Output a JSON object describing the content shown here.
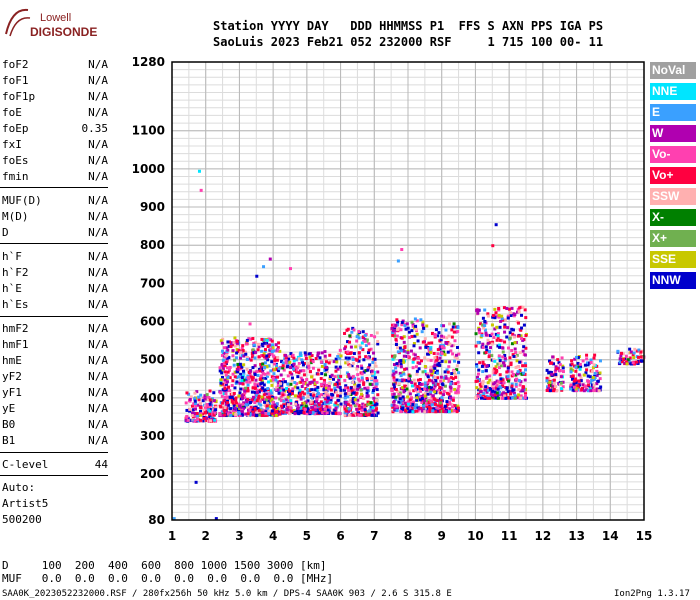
{
  "logo": {
    "line1": "Lowell",
    "line2": "DIGISONDE"
  },
  "header": {
    "row1": "Station YYYY DAY   DDD HHMMSS P1  FFS S AXN PPS IGA PS",
    "row2": "SaoLuis 2023 Feb21 052 232000 RSF     1 715 100 00- 11"
  },
  "params": [
    {
      "name": "foF2",
      "value": "N/A"
    },
    {
      "name": "foF1",
      "value": "N/A"
    },
    {
      "name": "foF1p",
      "value": "N/A"
    },
    {
      "name": "foE",
      "value": "N/A"
    },
    {
      "name": "foEp",
      "value": "0.35"
    },
    {
      "name": "fxI",
      "value": "N/A"
    },
    {
      "name": "foEs",
      "value": "N/A"
    },
    {
      "name": "fmin",
      "value": "N/A"
    },
    {
      "name": "MUF(D)",
      "value": "N/A"
    },
    {
      "name": "M(D)",
      "value": "N/A"
    },
    {
      "name": "D",
      "value": "N/A"
    },
    {
      "name": "h`F",
      "value": "N/A"
    },
    {
      "name": "h`F2",
      "value": "N/A"
    },
    {
      "name": "h`E",
      "value": "N/A"
    },
    {
      "name": "h`Es",
      "value": "N/A"
    },
    {
      "name": "hmF2",
      "value": "N/A"
    },
    {
      "name": "hmF1",
      "value": "N/A"
    },
    {
      "name": "hmE",
      "value": "N/A"
    },
    {
      "name": "yF2",
      "value": "N/A"
    },
    {
      "name": "yF1",
      "value": "N/A"
    },
    {
      "name": "yE",
      "value": "N/A"
    },
    {
      "name": "B0",
      "value": "N/A"
    },
    {
      "name": "B1",
      "value": "N/A"
    },
    {
      "name": "C-level",
      "value": "44"
    }
  ],
  "auto": {
    "line1": "Auto:",
    "line2": "Artist5",
    "line3": "500200"
  },
  "footer": {
    "d_row": "D     100  200  400  600  800 1000 1500 3000 [km]",
    "muf_row": "MUF   0.0  0.0  0.0  0.0  0.0  0.0  0.0  0.0 [MHz]",
    "file_info": "SAA0K_2023052232000.RSF / 280fx256h 50 kHz 5.0 km / DPS-4 SAA0K 903 / 2.6 S 315.8 E",
    "version": "Ion2Png 1.3.17"
  },
  "legend": [
    {
      "label": "NoVal",
      "color": "#a0a0a0"
    },
    {
      "label": "NNE",
      "color": "#00e5ff"
    },
    {
      "label": "E",
      "color": "#3aa0ff"
    },
    {
      "label": "W",
      "color": "#b000b0"
    },
    {
      "label": "Vo-",
      "color": "#ff40b0"
    },
    {
      "label": "Vo+",
      "color": "#ff0040"
    },
    {
      "label": "SSW",
      "color": "#ffb0b0"
    },
    {
      "label": "X-",
      "color": "#008000"
    },
    {
      "label": "X+",
      "color": "#70b050"
    },
    {
      "label": "SSE",
      "color": "#c8c800"
    },
    {
      "label": "NNW",
      "color": "#0000cc"
    }
  ],
  "chart_data": {
    "type": "scatter",
    "xlim": [
      1,
      15
    ],
    "ylim": [
      80,
      1280
    ],
    "xticks": [
      1,
      2,
      3,
      4,
      5,
      6,
      7,
      8,
      9,
      10,
      11,
      12,
      13,
      14,
      15
    ],
    "yticks": [
      80,
      200,
      300,
      400,
      500,
      600,
      700,
      800,
      900,
      1000,
      1100,
      1280
    ],
    "grid": true,
    "legend_position": "right",
    "clusters": [
      {
        "xmin": 1.4,
        "xmax": 2.3,
        "ymin": 340,
        "ymax": 420,
        "count": 180
      },
      {
        "xmin": 2.4,
        "xmax": 4.2,
        "ymin": 355,
        "ymax": 560,
        "count": 700
      },
      {
        "xmin": 4.2,
        "xmax": 5.6,
        "ymin": 360,
        "ymax": 520,
        "count": 420
      },
      {
        "xmin": 5.5,
        "xmax": 6.0,
        "ymin": 360,
        "ymax": 530,
        "count": 120
      },
      {
        "xmin": 6.1,
        "xmax": 7.1,
        "ymin": 355,
        "ymax": 590,
        "count": 320
      },
      {
        "xmin": 7.5,
        "xmax": 8.6,
        "ymin": 365,
        "ymax": 610,
        "count": 380
      },
      {
        "xmin": 8.6,
        "xmax": 9.5,
        "ymin": 365,
        "ymax": 600,
        "count": 300
      },
      {
        "xmin": 10.0,
        "xmax": 11.5,
        "ymin": 400,
        "ymax": 640,
        "count": 420
      },
      {
        "xmin": 12.1,
        "xmax": 12.6,
        "ymin": 420,
        "ymax": 510,
        "count": 80
      },
      {
        "xmin": 12.8,
        "xmax": 13.7,
        "ymin": 420,
        "ymax": 515,
        "count": 140
      },
      {
        "xmin": 14.2,
        "xmax": 15.0,
        "ymin": 490,
        "ymax": 530,
        "count": 70
      }
    ],
    "outliers": [
      {
        "x": 1.8,
        "y": 995
      },
      {
        "x": 1.85,
        "y": 945
      },
      {
        "x": 3.9,
        "y": 765
      },
      {
        "x": 3.7,
        "y": 745
      },
      {
        "x": 3.5,
        "y": 720
      },
      {
        "x": 4.5,
        "y": 740
      },
      {
        "x": 7.7,
        "y": 760
      },
      {
        "x": 7.8,
        "y": 790
      },
      {
        "x": 10.6,
        "y": 855
      },
      {
        "x": 10.5,
        "y": 800
      },
      {
        "x": 3.3,
        "y": 595
      },
      {
        "x": 1.7,
        "y": 180
      },
      {
        "x": 2.3,
        "y": 85
      },
      {
        "x": 1.05,
        "y": 85
      }
    ]
  }
}
